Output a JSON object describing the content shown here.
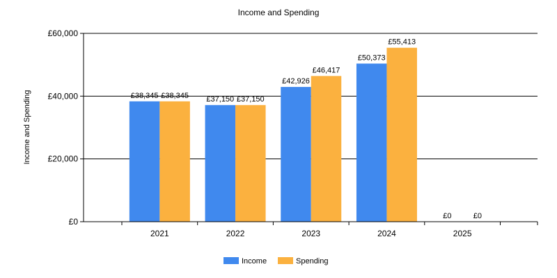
{
  "chart_data": {
    "type": "bar",
    "title": "Income and Spending",
    "xlabel": "",
    "ylabel": "Income and Spending",
    "categories": [
      "2021",
      "2022",
      "2023",
      "2024",
      "2025"
    ],
    "series": [
      {
        "name": "Income",
        "color": "#4089EE",
        "values": [
          38345,
          37150,
          42926,
          50373,
          0
        ],
        "labels": [
          "£38,345",
          "£37,150",
          "£42,926",
          "£50,373",
          "£0"
        ]
      },
      {
        "name": "Spending",
        "color": "#FBB13F",
        "values": [
          38345,
          37150,
          46417,
          55413,
          0
        ],
        "labels": [
          "£38,345",
          "£37,150",
          "£46,417",
          "£55,413",
          "£0"
        ]
      }
    ],
    "ylim": [
      0,
      60000
    ],
    "yticks": [
      0,
      20000,
      40000,
      60000
    ],
    "ytick_labels": [
      "£0",
      "£20,000",
      "£40,000",
      "£60,000"
    ],
    "grid": "horizontal",
    "legend_position": "bottom"
  }
}
